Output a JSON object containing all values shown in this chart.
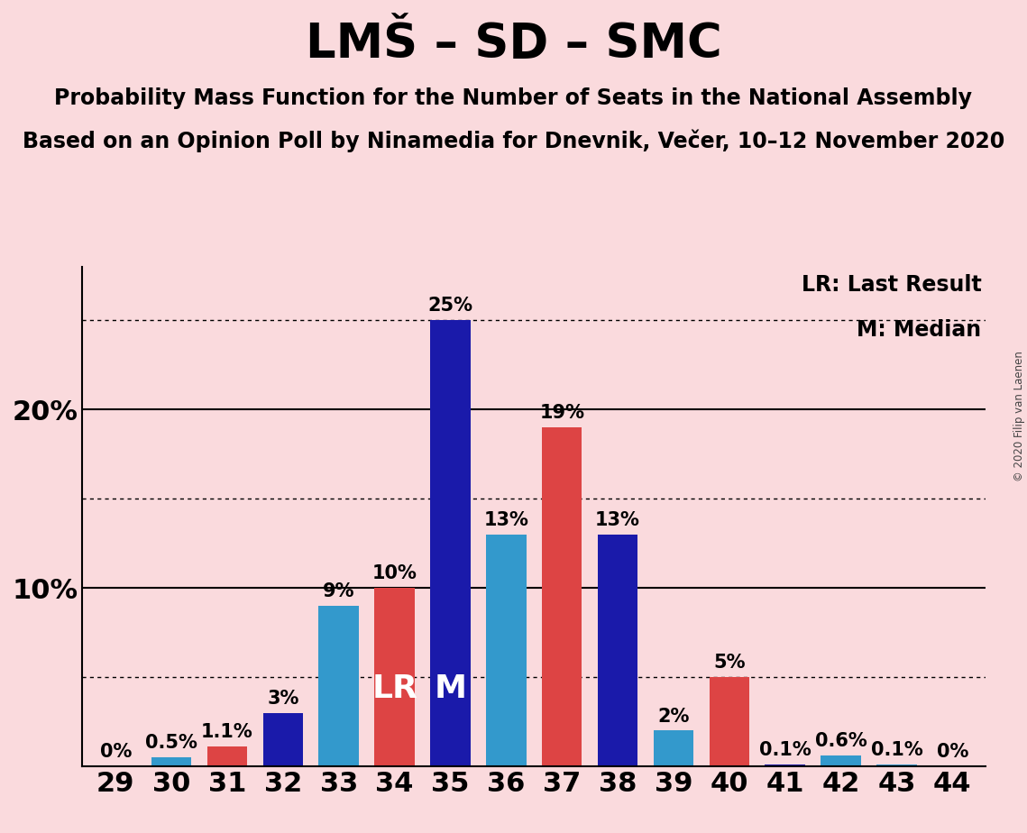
{
  "title": "LMŠ – SD – SMC",
  "subtitle1": "Probability Mass Function for the Number of Seats in the National Assembly",
  "subtitle2": "Based on an Opinion Poll by Ninamedia for Dnevnik, Večer, 10–12 November 2020",
  "copyright": "© 2020 Filip van Laenen",
  "legend_lr": "LR: Last Result",
  "legend_m": "M: Median",
  "seats": [
    29,
    30,
    31,
    32,
    33,
    34,
    35,
    36,
    37,
    38,
    39,
    40,
    41,
    42,
    43,
    44
  ],
  "bar_values": [
    0.0,
    0.5,
    1.1,
    3.0,
    9.0,
    10.0,
    25.0,
    13.0,
    19.0,
    13.0,
    2.0,
    5.0,
    0.1,
    0.6,
    0.1,
    0.0
  ],
  "bar_colors": [
    "#fadadd",
    "#3399cc",
    "#dd4444",
    "#1a1aaa",
    "#3399cc",
    "#dd4444",
    "#1a1aaa",
    "#3399cc",
    "#dd4444",
    "#1a1aaa",
    "#3399cc",
    "#dd4444",
    "#1a1aaa",
    "#3399cc",
    "#3399cc",
    "#dd4444"
  ],
  "bar_labels": [
    "0%",
    "0.5%",
    "1.1%",
    "3%",
    "9%",
    "10%",
    "25%",
    "13%",
    "19%",
    "13%",
    "2%",
    "5%",
    "0.1%",
    "0.6%",
    "0.1%",
    "0%"
  ],
  "label_inside": [
    null,
    null,
    null,
    null,
    null,
    "LR",
    "M",
    null,
    null,
    null,
    null,
    null,
    null,
    null,
    null,
    null
  ],
  "background_color": "#fadadd",
  "lr_seat": 34,
  "median_seat": 35,
  "ylim_max": 28,
  "ytick_positions": [
    0,
    5,
    10,
    15,
    20,
    25
  ],
  "ytick_labels": [
    "",
    "",
    "10%",
    "",
    "20%",
    ""
  ],
  "dotted_lines": [
    5.0,
    15.0,
    25.0
  ],
  "solid_lines": [
    10.0,
    20.0
  ],
  "title_fontsize": 38,
  "subtitle_fontsize": 17,
  "label_fontsize": 15,
  "tick_fontsize": 22,
  "inside_label_fontsize": 26
}
